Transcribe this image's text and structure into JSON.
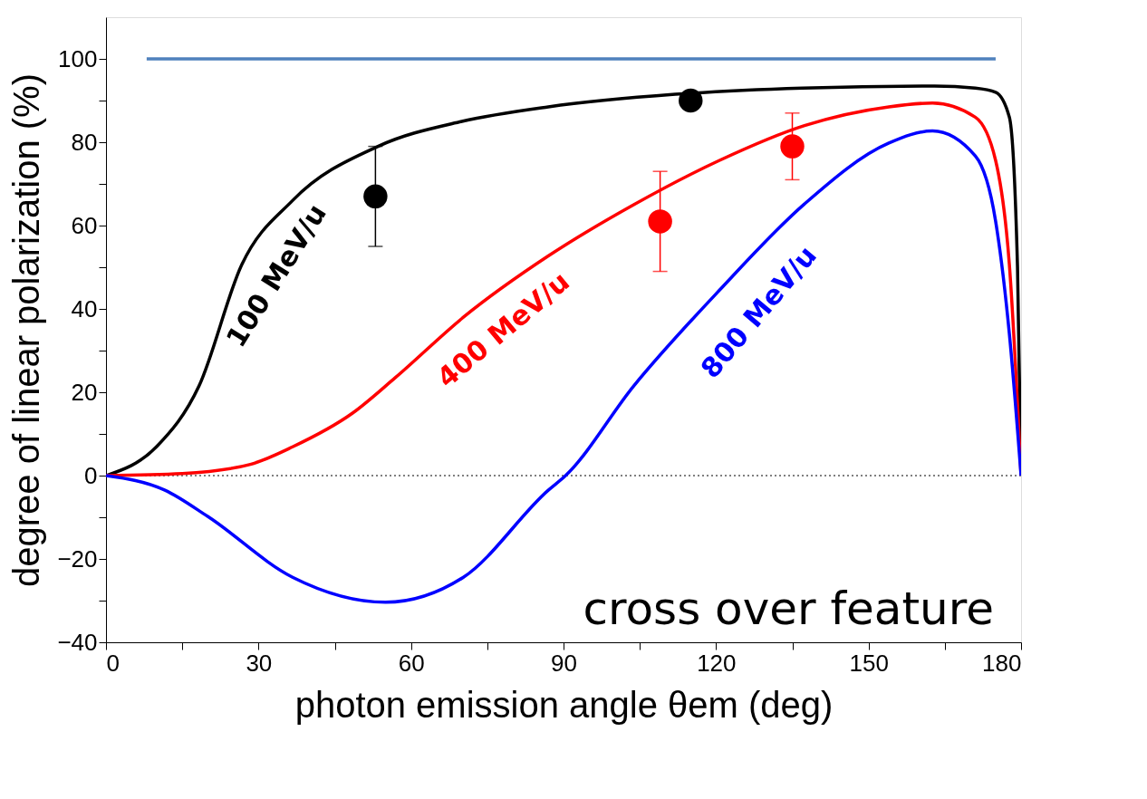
{
  "chart_data": {
    "type": "line",
    "xlabel": "photon emission angle θem (deg)",
    "ylabel": "degree of linear polarization (%)",
    "xlim": [
      0,
      180
    ],
    "ylim": [
      -40,
      110
    ],
    "xticks": [
      0,
      {
        "value": 15,
        "label": null
      },
      30,
      {
        "value": 45,
        "label": null
      },
      60,
      {
        "value": 75,
        "label": null
      },
      90,
      {
        "value": 105,
        "label": null
      },
      120,
      {
        "value": 135,
        "label": null
      },
      150,
      {
        "value": 165,
        "label": null
      },
      180
    ],
    "yticks": [
      -40,
      {
        "value": -30,
        "label": null
      },
      -20,
      {
        "value": -10,
        "label": null
      },
      0,
      {
        "value": 10,
        "label": null
      },
      20,
      {
        "value": 30,
        "label": null
      },
      40,
      {
        "value": 50,
        "label": null
      },
      60,
      {
        "value": 70,
        "label": null
      },
      80,
      {
        "value": 90,
        "label": null
      },
      100
    ],
    "grid": false,
    "marker": "none",
    "line_style": "solid",
    "ref_lines": [
      {
        "axis": "y",
        "value": 0,
        "label": null,
        "color": "#000000",
        "line_style": "dotted"
      }
    ],
    "annotations": [
      "cross over feature"
    ],
    "series": [
      {
        "name": "100 MeV/u",
        "color": "#000000",
        "x": [
          0,
          10,
          18.3,
          26.7,
          36.7,
          53.5,
          70,
          87,
          112,
          137,
          163,
          171,
          175,
          177.7,
          179.3,
          180
        ],
        "values": [
          0,
          7,
          21.5,
          50.6,
          66,
          79,
          85,
          88.5,
          91.5,
          93,
          93.5,
          93,
          92,
          86,
          50,
          0
        ]
      },
      {
        "name": "400 MeV/u",
        "color": "#ff0000",
        "x": [
          0,
          15,
          28.4,
          36.7,
          48.5,
          56.9,
          70.3,
          87,
          103.8,
          120.6,
          137.4,
          154,
          162.6,
          171,
          175,
          177.7,
          180
        ],
        "values": [
          0,
          0.5,
          2.7,
          6.9,
          15,
          23.5,
          38,
          52.7,
          65,
          75.6,
          84,
          88.5,
          89.4,
          86,
          75.6,
          50.6,
          0
        ]
      },
      {
        "name": "800 MeV/u",
        "color": "#0000ff",
        "x": [
          0,
          11.6,
          20,
          36.7,
          55,
          70.3,
          87,
          90.4,
          103.8,
          120.6,
          137.4,
          154,
          162.6,
          171,
          175,
          177.7,
          180
        ],
        "values": [
          0,
          -3.5,
          -9.8,
          -24.4,
          -30.4,
          -24.4,
          -3.5,
          0,
          21.5,
          44.4,
          65.2,
          79.8,
          82.7,
          76.7,
          61,
          34,
          0
        ]
      },
      {
        "color": "#4f81bd",
        "x": [
          8,
          175
        ],
        "values": [
          100,
          100
        ]
      },
      {
        "type": "scatter",
        "color": "#000000",
        "marker": "circle",
        "x": [
          53,
          115
        ],
        "values": [
          67,
          90
        ],
        "errors": [
          [
            55,
            79
          ],
          null
        ]
      },
      {
        "type": "scatter",
        "color": "#ff0000",
        "marker": "circle",
        "x": [
          109,
          135
        ],
        "values": [
          61,
          79
        ],
        "errors": [
          [
            49,
            73
          ],
          [
            71,
            87
          ]
        ]
      }
    ]
  }
}
